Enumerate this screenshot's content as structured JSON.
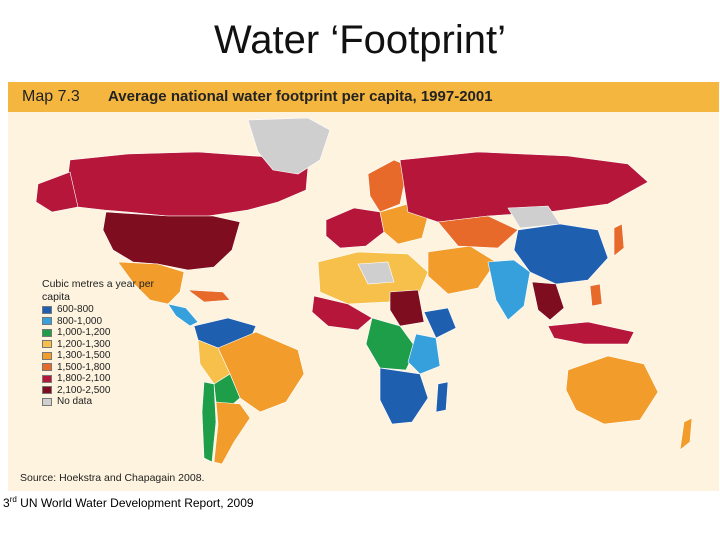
{
  "slide": {
    "title": "Water ‘Footprint’",
    "footer_ord": "3",
    "footer_sup": "rd",
    "footer_rest": " UN World Water Development Report, 2009"
  },
  "map": {
    "number": "Map 7.3",
    "title": "Average national water footprint per capita, 1997-2001",
    "source": "Source: Hoekstra and Chapagain 2008.",
    "legend_title": "Cubic metres a year per capita",
    "legend": [
      {
        "label": "600-800",
        "color": "#1f5fb0"
      },
      {
        "label": "800-1,000",
        "color": "#35a0dc"
      },
      {
        "label": "1,000-1,200",
        "color": "#1f9e4a"
      },
      {
        "label": "1,200-1,300",
        "color": "#f6c04a"
      },
      {
        "label": "1,300-1,500",
        "color": "#f29c2b"
      },
      {
        "label": "1,500-1,800",
        "color": "#e86a2a"
      },
      {
        "label": "1,800-2,100",
        "color": "#b5163a"
      },
      {
        "label": "2,100-2,500",
        "color": "#7d0d1f"
      },
      {
        "label": "No data",
        "color": "#cfcfcf"
      }
    ]
  }
}
